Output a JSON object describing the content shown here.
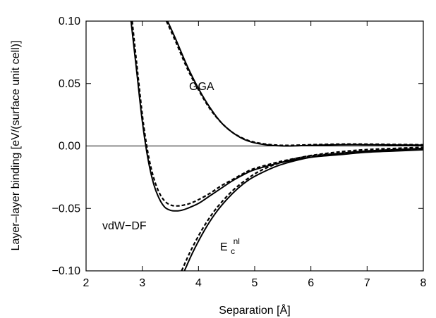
{
  "chart_data": {
    "type": "line",
    "title": "",
    "xlabel": "Separation  [Å]",
    "ylabel": "Layer–layer binding  [eV/(surface unit cell)]",
    "xlim": [
      2,
      8
    ],
    "ylim": [
      -0.1,
      0.1
    ],
    "xticks": [
      2,
      3,
      4,
      5,
      6,
      7,
      8
    ],
    "xtick_labels": [
      "2",
      "3",
      "4",
      "5",
      "6",
      "7",
      "8"
    ],
    "yticks": [
      -0.1,
      -0.05,
      0.0,
      0.05,
      0.1
    ],
    "ytick_labels": [
      "−0.10",
      "−0.05",
      "0.00",
      "0.05",
      "0.10"
    ],
    "grid": false,
    "zero_line": 0.0,
    "annotations": {
      "gga": "GGA",
      "vdw": "vdW−DF",
      "enl_main": "E",
      "enl_sub": "c",
      "enl_sup": "nl"
    },
    "series": [
      {
        "style": "solid",
        "curve": "GGA",
        "x": [
          3.45,
          3.6,
          3.8,
          4.0,
          4.2,
          4.4,
          4.6,
          4.8,
          5.0,
          5.3,
          5.6,
          6.0,
          6.5,
          7.0,
          7.5,
          8.0
        ],
        "y": [
          0.1,
          0.085,
          0.064,
          0.046,
          0.031,
          0.019,
          0.011,
          0.0055,
          0.0025,
          0.0005,
          0.0,
          0.0005,
          0.001,
          0.001,
          0.0008,
          0.0007
        ]
      },
      {
        "style": "dashed",
        "curve": "GGA",
        "x": [
          3.43,
          3.6,
          3.8,
          4.0,
          4.2,
          4.4,
          4.6,
          4.8,
          5.0,
          5.3,
          5.6,
          6.0,
          6.5,
          7.0,
          7.5,
          8.0
        ],
        "y": [
          0.1,
          0.083,
          0.062,
          0.045,
          0.03,
          0.019,
          0.011,
          0.006,
          0.003,
          0.001,
          0.0005,
          0.001,
          0.0015,
          0.0015,
          0.0012,
          0.001
        ]
      },
      {
        "style": "solid",
        "curve": "vdW-DF",
        "x": [
          2.8,
          2.9,
          3.0,
          3.1,
          3.2,
          3.3,
          3.4,
          3.5,
          3.6,
          3.7,
          3.8,
          4.0,
          4.2,
          4.4,
          4.6,
          4.8,
          5.0,
          5.5,
          6.0,
          6.5,
          7.0,
          7.5,
          8.0
        ],
        "y": [
          0.1,
          0.06,
          0.02,
          -0.01,
          -0.03,
          -0.042,
          -0.049,
          -0.0515,
          -0.052,
          -0.0515,
          -0.05,
          -0.046,
          -0.04,
          -0.034,
          -0.028,
          -0.023,
          -0.019,
          -0.013,
          -0.009,
          -0.007,
          -0.005,
          -0.004,
          -0.003
        ]
      },
      {
        "style": "dashed",
        "curve": "vdW-DF",
        "x": [
          2.82,
          2.92,
          3.02,
          3.12,
          3.22,
          3.32,
          3.42,
          3.52,
          3.62,
          3.72,
          3.85,
          4.0,
          4.2,
          4.4,
          4.6,
          4.8,
          5.0,
          5.5,
          6.0,
          6.5,
          7.0,
          7.5,
          8.0
        ],
        "y": [
          0.1,
          0.058,
          0.018,
          -0.01,
          -0.028,
          -0.039,
          -0.045,
          -0.0475,
          -0.048,
          -0.0475,
          -0.046,
          -0.043,
          -0.038,
          -0.032,
          -0.027,
          -0.022,
          -0.018,
          -0.012,
          -0.008,
          -0.006,
          -0.004,
          -0.003,
          -0.002
        ]
      },
      {
        "style": "solid",
        "curve": "Ecnl",
        "x": [
          3.75,
          3.9,
          4.1,
          4.3,
          4.5,
          4.7,
          4.9,
          5.1,
          5.4,
          5.7,
          6.0,
          6.5,
          7.0,
          7.5,
          8.0
        ],
        "y": [
          -0.1,
          -0.085,
          -0.068,
          -0.054,
          -0.043,
          -0.034,
          -0.027,
          -0.022,
          -0.016,
          -0.012,
          -0.009,
          -0.006,
          -0.004,
          -0.003,
          -0.002
        ]
      },
      {
        "style": "dashed",
        "curve": "Ecnl",
        "x": [
          3.7,
          3.85,
          4.05,
          4.25,
          4.45,
          4.65,
          4.85,
          5.05,
          5.35,
          5.65,
          5.95,
          6.45,
          6.95,
          7.45,
          8.0
        ],
        "y": [
          -0.1,
          -0.085,
          -0.068,
          -0.054,
          -0.043,
          -0.034,
          -0.027,
          -0.021,
          -0.015,
          -0.011,
          -0.008,
          -0.005,
          -0.003,
          -0.002,
          -0.001
        ]
      }
    ]
  }
}
